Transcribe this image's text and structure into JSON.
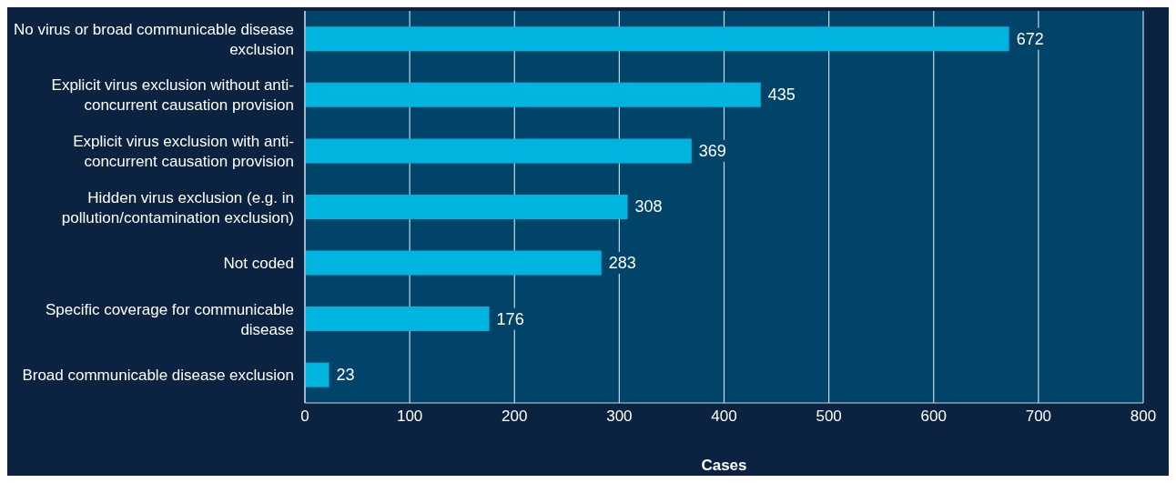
{
  "chart_data": {
    "type": "bar",
    "orientation": "horizontal",
    "xlabel": "Cases",
    "categories": [
      "No virus or broad communicable disease exclusion",
      "Explicit virus exclusion without anti-concurrent causation provision",
      "Explicit virus exclusion with anti-concurrent causation provision",
      "Hidden virus exclusion (e.g. in pollution/contamination exclusion)",
      "Not coded",
      "Specific coverage for communicable disease",
      "Broad communicable disease exclusion"
    ],
    "values": [
      672,
      435,
      369,
      308,
      283,
      176,
      23
    ],
    "color": "#00b4e0",
    "xlim": [
      0,
      800
    ],
    "xticks": [
      0,
      100,
      200,
      300,
      400,
      500,
      600,
      700,
      800
    ],
    "grid": "x",
    "data_labels": true
  }
}
